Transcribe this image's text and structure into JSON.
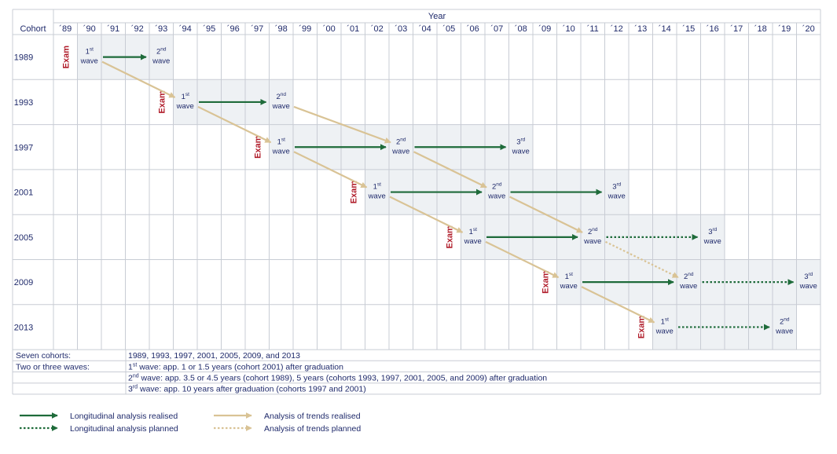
{
  "header": {
    "year_label": "Year",
    "cohort_label": "Cohort",
    "years": [
      "´89",
      "´90",
      "´91",
      "´92",
      "´93",
      "´94",
      "´95",
      "´96",
      "´97",
      "´98",
      "´99",
      "´00",
      "´01",
      "´02",
      "´03",
      "´04",
      "´05",
      "´06",
      "´07",
      "´08",
      "´09",
      "´10",
      "´11",
      "´12",
      "´13",
      "´14",
      "´15",
      "´16",
      "´17",
      "´18",
      "´19",
      "´20"
    ]
  },
  "cohorts": [
    {
      "label": "1989",
      "exam_year": 0,
      "waves": [
        {
          "year": 1,
          "ord": "1",
          "sup": "st",
          "word": "wave"
        },
        {
          "year": 4,
          "ord": "2",
          "sup": "nd",
          "word": "wave"
        }
      ]
    },
    {
      "label": "1993",
      "exam_year": 4,
      "waves": [
        {
          "year": 5,
          "ord": "1",
          "sup": "st",
          "word": "wave"
        },
        {
          "year": 9,
          "ord": "2",
          "sup": "nd",
          "word": "wave"
        }
      ]
    },
    {
      "label": "1997",
      "exam_year": 8,
      "waves": [
        {
          "year": 9,
          "ord": "1",
          "sup": "st",
          "word": "wave"
        },
        {
          "year": 14,
          "ord": "2",
          "sup": "nd",
          "word": "wave"
        },
        {
          "year": 19,
          "ord": "3",
          "sup": "rd",
          "word": "wave"
        }
      ]
    },
    {
      "label": "2001",
      "exam_year": 12,
      "waves": [
        {
          "year": 13,
          "ord": "1",
          "sup": "st",
          "word": "wave"
        },
        {
          "year": 18,
          "ord": "2",
          "sup": "nd",
          "word": "wave"
        },
        {
          "year": 23,
          "ord": "3",
          "sup": "rd",
          "word": "wave"
        }
      ]
    },
    {
      "label": "2005",
      "exam_year": 16,
      "waves": [
        {
          "year": 17,
          "ord": "1",
          "sup": "st",
          "word": "wave"
        },
        {
          "year": 22,
          "ord": "2",
          "sup": "nd",
          "word": "wave"
        },
        {
          "year": 27,
          "ord": "3",
          "sup": "rd",
          "word": "wave"
        }
      ]
    },
    {
      "label": "2009",
      "exam_year": 20,
      "waves": [
        {
          "year": 21,
          "ord": "1",
          "sup": "st",
          "word": "wave"
        },
        {
          "year": 26,
          "ord": "2",
          "sup": "nd",
          "word": "wave"
        },
        {
          "year": 31,
          "ord": "3",
          "sup": "rd",
          "word": "wave"
        }
      ]
    },
    {
      "label": "2013",
      "exam_year": 24,
      "waves": [
        {
          "year": 25,
          "ord": "1",
          "sup": "st",
          "word": "wave"
        },
        {
          "year": 30,
          "ord": "2",
          "sup": "nd",
          "word": "wave"
        }
      ]
    }
  ],
  "exam_label": "Exam",
  "longitudinal_arrows": [
    {
      "row": 0,
      "from_year": 1,
      "to_year": 4,
      "style": "realised"
    },
    {
      "row": 1,
      "from_year": 5,
      "to_year": 9,
      "style": "realised"
    },
    {
      "row": 2,
      "from_year": 9,
      "to_year": 14,
      "style": "realised"
    },
    {
      "row": 2,
      "from_year": 14,
      "to_year": 19,
      "style": "realised"
    },
    {
      "row": 3,
      "from_year": 13,
      "to_year": 18,
      "style": "realised"
    },
    {
      "row": 3,
      "from_year": 18,
      "to_year": 23,
      "style": "realised"
    },
    {
      "row": 4,
      "from_year": 17,
      "to_year": 22,
      "style": "realised"
    },
    {
      "row": 4,
      "from_year": 22,
      "to_year": 27,
      "style": "planned"
    },
    {
      "row": 5,
      "from_year": 21,
      "to_year": 26,
      "style": "realised"
    },
    {
      "row": 5,
      "from_year": 26,
      "to_year": 31,
      "style": "planned"
    },
    {
      "row": 6,
      "from_year": 25,
      "to_year": 30,
      "style": "planned"
    }
  ],
  "trend_arrows": [
    {
      "from_row": 0,
      "from_year": 1,
      "to_row": 1,
      "to_year": 5,
      "style": "realised"
    },
    {
      "from_row": 1,
      "from_year": 5,
      "to_row": 2,
      "to_year": 9,
      "style": "realised"
    },
    {
      "from_row": 1,
      "from_year": 9,
      "to_row": 2,
      "to_year": 14,
      "style": "realised"
    },
    {
      "from_row": 2,
      "from_year": 9,
      "to_row": 3,
      "to_year": 13,
      "style": "realised"
    },
    {
      "from_row": 2,
      "from_year": 14,
      "to_row": 3,
      "to_year": 18,
      "style": "realised"
    },
    {
      "from_row": 3,
      "from_year": 13,
      "to_row": 4,
      "to_year": 17,
      "style": "realised"
    },
    {
      "from_row": 3,
      "from_year": 18,
      "to_row": 4,
      "to_year": 22,
      "style": "realised"
    },
    {
      "from_row": 4,
      "from_year": 17,
      "to_row": 5,
      "to_year": 21,
      "style": "realised"
    },
    {
      "from_row": 4,
      "from_year": 22,
      "to_row": 5,
      "to_year": 26,
      "style": "planned"
    },
    {
      "from_row": 5,
      "from_year": 21,
      "to_row": 6,
      "to_year": 25,
      "style": "realised"
    }
  ],
  "notes": [
    {
      "label": "Seven cohorts:",
      "parts": [
        {
          "text": "1989, 1993, 1997, 2001, 2005, 2009, and 2013"
        }
      ]
    },
    {
      "label": "Two or three waves:",
      "parts": [
        {
          "text": "1"
        },
        {
          "sup": "st"
        },
        {
          "text": " wave: app. 1 or 1.5 years (cohort 2001) after graduation"
        }
      ]
    },
    {
      "label": "",
      "parts": [
        {
          "text": "2"
        },
        {
          "sup": "nd"
        },
        {
          "text": " wave: app. 3.5 or 4.5 years (cohort 1989), 5 years (cohorts 1993, 1997, 2001, 2005, and 2009) after graduation"
        }
      ]
    },
    {
      "label": "",
      "parts": [
        {
          "text": "3"
        },
        {
          "sup": "rd"
        },
        {
          "text": " wave: app. 10 years after graduation (cohorts 1997 and 2001)"
        }
      ]
    }
  ],
  "legend": [
    {
      "label": "Longitudinal analysis realised",
      "color": "#1e6b3a",
      "dashed": false
    },
    {
      "label": "Longitudinal analysis planned",
      "color": "#1e6b3a",
      "dashed": true
    },
    {
      "label": "Analysis of trends realised",
      "color": "#d9c395",
      "dashed": false
    },
    {
      "label": "Analysis of trends planned",
      "color": "#d9c395",
      "dashed": true
    }
  ],
  "colors": {
    "grid": "#c8ccd4",
    "shade": "#eef1f4",
    "text": "#1f2a6b",
    "exam": "#b01c2a",
    "longitudinal": "#1e6b3a",
    "trend": "#d9c395"
  }
}
